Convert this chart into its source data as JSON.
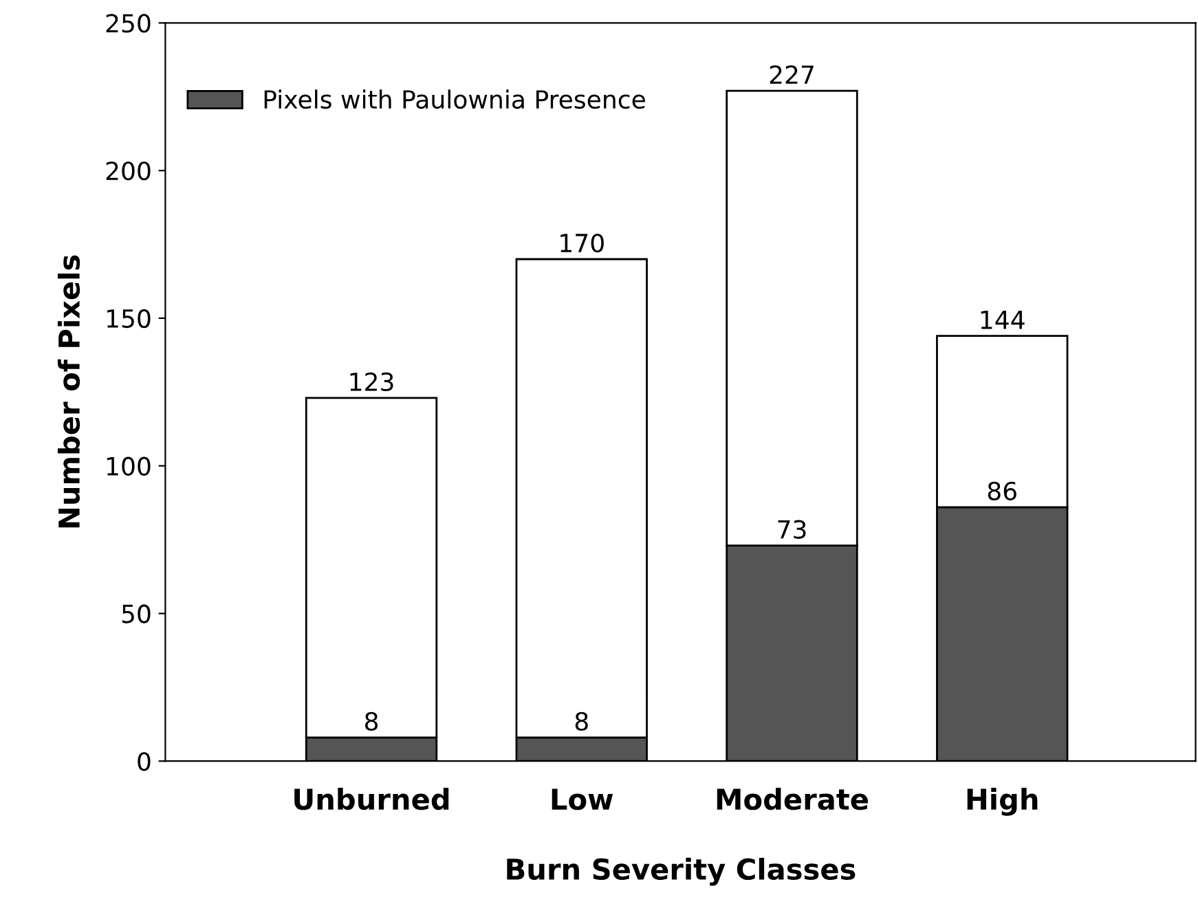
{
  "chart_data": {
    "type": "bar",
    "stacked": true,
    "xlabel": "Burn Severity Classes",
    "ylabel": "Number of Pixels",
    "categories": [
      "Unburned",
      "Low",
      "Moderate",
      "High"
    ],
    "series": [
      {
        "name": "Pixels with Paulownia Presence",
        "color": "#555555",
        "values": [
          8,
          8,
          73,
          86
        ],
        "value_labels": [
          "8",
          "8",
          "73",
          "86"
        ]
      },
      {
        "color": "#ffffff",
        "values": [
          115,
          162,
          154,
          58
        ]
      }
    ],
    "totals": [
      "123",
      "170",
      "227",
      "144"
    ],
    "ylim": [
      0,
      250
    ],
    "yticks": [
      0,
      50,
      100,
      150,
      200,
      250
    ],
    "legend": "top left",
    "grid": false
  }
}
